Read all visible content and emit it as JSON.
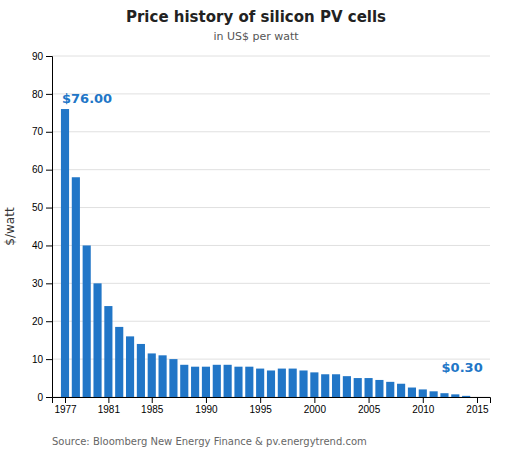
{
  "chart_data": {
    "type": "bar",
    "title": "Price history of silicon PV cells",
    "subtitle": "in US$ per watt",
    "ylabel": "$/watt",
    "x": [
      1977,
      1978,
      1979,
      1980,
      1981,
      1982,
      1983,
      1984,
      1985,
      1986,
      1987,
      1988,
      1989,
      1990,
      1991,
      1992,
      1993,
      1994,
      1995,
      1996,
      1997,
      1998,
      1999,
      2000,
      2001,
      2002,
      2003,
      2004,
      2005,
      2006,
      2007,
      2008,
      2009,
      2010,
      2011,
      2012,
      2013,
      2014
    ],
    "values": [
      76.0,
      58.0,
      40.0,
      30.0,
      24.0,
      18.5,
      16.0,
      14.0,
      11.5,
      11.0,
      10.0,
      8.5,
      8.0,
      8.0,
      8.5,
      8.5,
      8.0,
      8.0,
      7.5,
      7.0,
      7.5,
      7.5,
      7.0,
      6.5,
      6.0,
      6.0,
      5.5,
      5.0,
      5.0,
      4.5,
      4.0,
      3.5,
      2.5,
      2.0,
      1.5,
      1.0,
      0.7,
      0.3
    ],
    "color": "#2176c7",
    "xlim": [
      1975.8,
      2016.2
    ],
    "xticks": [
      1977,
      1981,
      1985,
      1990,
      1995,
      2000,
      2005,
      2010,
      2015
    ],
    "ylim": [
      0,
      90
    ],
    "yticks": [
      0,
      10,
      20,
      30,
      40,
      50,
      60,
      70,
      80,
      90
    ],
    "grid": true,
    "annotations": [
      "$76.00",
      "$0.30"
    ],
    "source": "Source: Bloomberg New Energy Finance & pv.energytrend.com"
  }
}
